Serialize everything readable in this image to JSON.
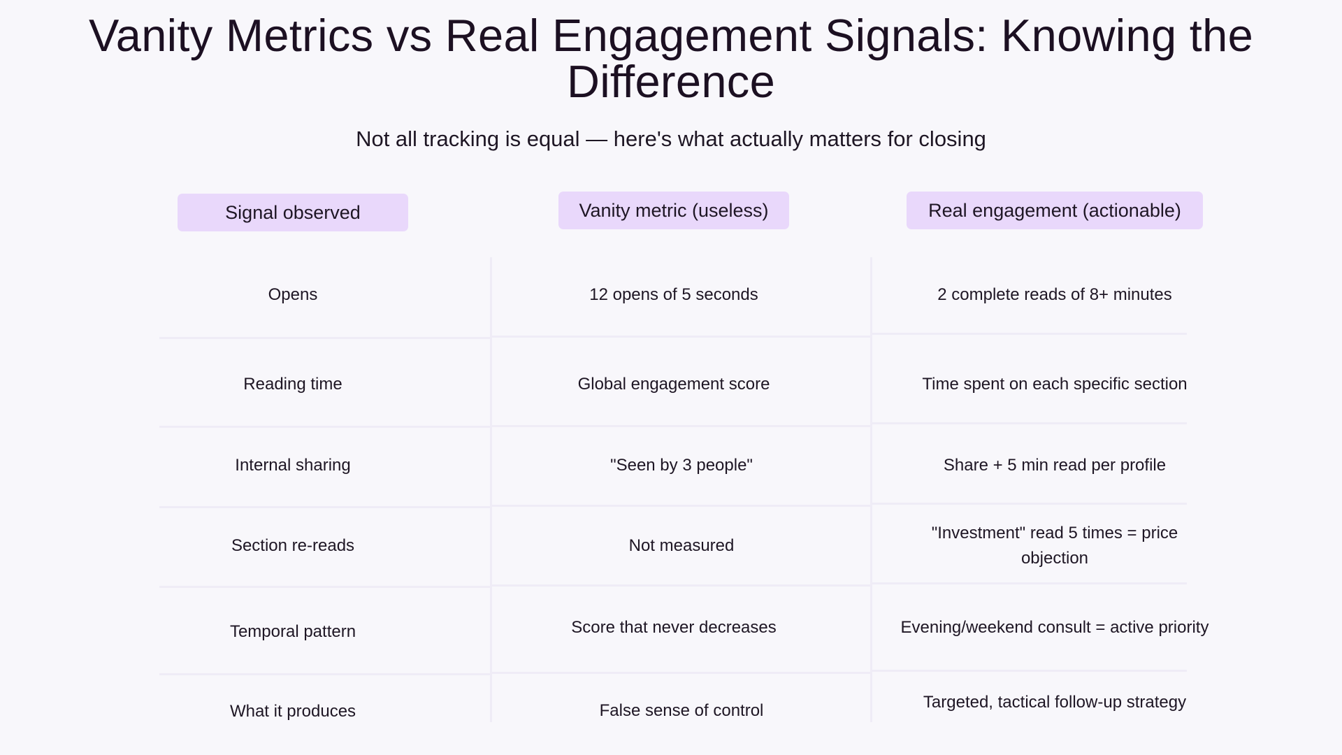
{
  "title": "Vanity Metrics vs Real Engagement Signals: Knowing the Difference",
  "subtitle": "Not all tracking is equal — here's what actually matters for closing",
  "headers": [
    "Signal observed",
    "Vanity metric (useless)",
    "Real engagement (actionable)"
  ],
  "rows": [
    [
      "Opens",
      "12 opens of 5 seconds",
      "2 complete reads of 8+ minutes"
    ],
    [
      "Reading time",
      "Global engagement score",
      "Time spent on each specific section"
    ],
    [
      "Internal sharing",
      "\"Seen by 3 people\"",
      "Share + 5 min read per profile"
    ],
    [
      "Section re-reads",
      "Not measured",
      "\"Investment\" read 5 times = price objection"
    ],
    [
      "Temporal pattern",
      "Score that never decreases",
      "Evening/weekend consult = active priority"
    ],
    [
      "What it produces",
      "False sense of control",
      "Targeted, tactical follow-up strategy"
    ]
  ],
  "colors": {
    "background": "#f8f7fb",
    "header_fill": "#e9d8fb",
    "grid_line": "#efecf6",
    "text": "#1e1624"
  }
}
